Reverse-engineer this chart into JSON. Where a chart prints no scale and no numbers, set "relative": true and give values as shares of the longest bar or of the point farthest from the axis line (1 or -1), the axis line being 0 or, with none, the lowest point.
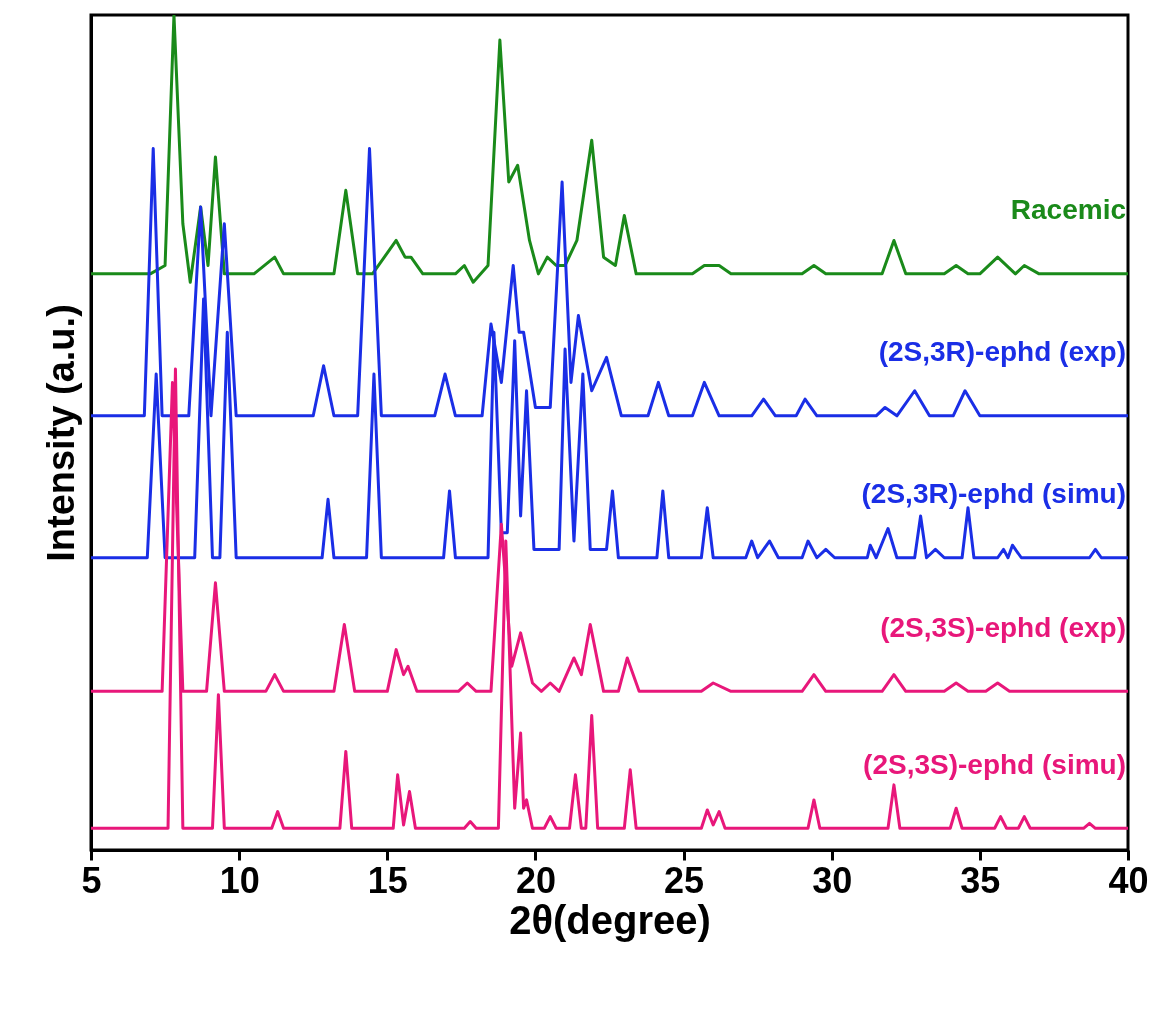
{
  "chart_data": {
    "type": "line",
    "relative": true,
    "xlabel": "2θ(degree)",
    "ylabel": "Intensity (a.u.)",
    "xlim": [
      5,
      40
    ],
    "xticks": [
      5,
      10,
      15,
      20,
      25,
      30,
      35,
      40
    ],
    "marker": "none",
    "line_style": "solid",
    "series": [
      {
        "name": "Racemic",
        "color": "#1a8a1a",
        "x": [
          5,
          7.0,
          7.5,
          7.8,
          8.1,
          8.35,
          8.7,
          8.95,
          9.2,
          9.5,
          10.5,
          11.2,
          11.5,
          13.2,
          13.6,
          14.0,
          14.5,
          15.3,
          15.6,
          15.8,
          16.2,
          17.3,
          17.6,
          17.9,
          18.4,
          18.8,
          19.1,
          19.4,
          19.8,
          20.1,
          20.4,
          20.7,
          21.0,
          21.4,
          21.9,
          22.3,
          22.7,
          23.0,
          23.4,
          25.3,
          25.7,
          26.0,
          26.2,
          26.6,
          29.0,
          29.4,
          29.8,
          31.7,
          32.1,
          32.5,
          33.8,
          34.2,
          34.6,
          35.0,
          35.6,
          36.2,
          36.5,
          37,
          40
        ],
        "values": [
          0.69,
          0.69,
          0.7,
          1.0,
          0.75,
          0.68,
          0.77,
          0.7,
          0.83,
          0.69,
          0.69,
          0.71,
          0.69,
          0.69,
          0.79,
          0.69,
          0.69,
          0.73,
          0.71,
          0.71,
          0.69,
          0.69,
          0.7,
          0.68,
          0.7,
          0.97,
          0.8,
          0.82,
          0.73,
          0.69,
          0.71,
          0.7,
          0.7,
          0.73,
          0.85,
          0.71,
          0.7,
          0.76,
          0.69,
          0.69,
          0.7,
          0.7,
          0.7,
          0.69,
          0.69,
          0.7,
          0.69,
          0.69,
          0.73,
          0.69,
          0.69,
          0.7,
          0.69,
          0.69,
          0.71,
          0.69,
          0.7,
          0.69,
          0.69
        ]
      },
      {
        "name": "(2S,3R)-ephd (exp)",
        "color": "#1a2ee6",
        "x": [
          5,
          6.8,
          7.1,
          7.4,
          8.3,
          8.7,
          9.05,
          9.5,
          9.9,
          12.5,
          12.85,
          13.2,
          14.0,
          14.4,
          14.8,
          16.6,
          16.95,
          17.3,
          18.2,
          18.5,
          18.85,
          19.25,
          19.45,
          19.6,
          20.0,
          20.5,
          20.9,
          21.2,
          21.45,
          21.9,
          22.4,
          22.9,
          23.8,
          24.15,
          24.5,
          25.3,
          25.7,
          26.2,
          27.3,
          27.7,
          28.1,
          28.8,
          29.1,
          29.5,
          31.5,
          31.8,
          32.2,
          32.8,
          33.3,
          34.1,
          34.5,
          35.0,
          40
        ],
        "values": [
          0.52,
          0.52,
          0.84,
          0.52,
          0.52,
          0.77,
          0.52,
          0.75,
          0.52,
          0.52,
          0.58,
          0.52,
          0.52,
          0.84,
          0.52,
          0.52,
          0.57,
          0.52,
          0.52,
          0.63,
          0.56,
          0.7,
          0.62,
          0.62,
          0.53,
          0.53,
          0.8,
          0.56,
          0.64,
          0.55,
          0.59,
          0.52,
          0.52,
          0.56,
          0.52,
          0.52,
          0.56,
          0.52,
          0.52,
          0.54,
          0.52,
          0.52,
          0.54,
          0.52,
          0.52,
          0.53,
          0.52,
          0.55,
          0.52,
          0.52,
          0.55,
          0.52,
          0.52
        ]
      },
      {
        "name": "(2S,3R)-ephd (simu)",
        "color": "#1a2ee6",
        "x": [
          5,
          6.9,
          7.2,
          7.5,
          8.5,
          8.8,
          9.1,
          9.35,
          9.6,
          9.9,
          12.8,
          13.0,
          13.2,
          14.3,
          14.55,
          14.8,
          16.9,
          17.1,
          17.3,
          18.4,
          18.6,
          18.85,
          19.05,
          19.3,
          19.5,
          19.7,
          19.95,
          20.8,
          21.0,
          21.3,
          21.6,
          21.85,
          22.4,
          22.6,
          22.8,
          24.1,
          24.3,
          24.5,
          25.6,
          25.8,
          26.0,
          27.1,
          27.3,
          27.5,
          27.9,
          28.2,
          29.0,
          29.2,
          29.5,
          29.8,
          30.1,
          31.2,
          31.3,
          31.5,
          31.9,
          32.2,
          32.8,
          33.0,
          33.2,
          33.5,
          33.8,
          34.4,
          34.6,
          34.8,
          35.6,
          35.8,
          35.95,
          36.1,
          36.4,
          38.7,
          38.9,
          39.1,
          40
        ],
        "values": [
          0.35,
          0.35,
          0.57,
          0.35,
          0.35,
          0.66,
          0.35,
          0.35,
          0.62,
          0.35,
          0.35,
          0.42,
          0.35,
          0.35,
          0.57,
          0.35,
          0.35,
          0.43,
          0.35,
          0.35,
          0.62,
          0.38,
          0.38,
          0.61,
          0.4,
          0.55,
          0.36,
          0.36,
          0.6,
          0.37,
          0.57,
          0.36,
          0.36,
          0.43,
          0.35,
          0.35,
          0.43,
          0.35,
          0.35,
          0.41,
          0.35,
          0.35,
          0.37,
          0.35,
          0.37,
          0.35,
          0.35,
          0.37,
          0.35,
          0.36,
          0.35,
          0.35,
          0.365,
          0.35,
          0.385,
          0.35,
          0.35,
          0.4,
          0.35,
          0.36,
          0.35,
          0.35,
          0.41,
          0.35,
          0.35,
          0.36,
          0.35,
          0.365,
          0.35,
          0.35,
          0.36,
          0.35,
          0.35
        ]
      },
      {
        "name": "(2S,3S)-ephd (exp)",
        "color": "#e8177a",
        "x": [
          5,
          7.4,
          7.75,
          8.1,
          8.9,
          9.2,
          9.5,
          10.9,
          11.2,
          11.5,
          13.2,
          13.55,
          13.9,
          15.0,
          15.3,
          15.55,
          15.7,
          16.0,
          17.4,
          17.7,
          18.0,
          18.5,
          18.85,
          19.2,
          19.5,
          19.9,
          20.2,
          20.5,
          20.8,
          21.3,
          21.55,
          21.85,
          22.3,
          22.8,
          23.1,
          23.5,
          25.6,
          26.0,
          26.6,
          29.0,
          29.4,
          29.8,
          31.7,
          32.1,
          32.5,
          33.8,
          34.2,
          34.6,
          35.2,
          35.6,
          36.0,
          40
        ],
        "values": [
          0.19,
          0.19,
          0.56,
          0.19,
          0.19,
          0.32,
          0.19,
          0.19,
          0.21,
          0.19,
          0.19,
          0.27,
          0.19,
          0.19,
          0.24,
          0.21,
          0.22,
          0.19,
          0.19,
          0.2,
          0.19,
          0.19,
          0.39,
          0.22,
          0.26,
          0.2,
          0.19,
          0.2,
          0.19,
          0.23,
          0.21,
          0.27,
          0.19,
          0.19,
          0.23,
          0.19,
          0.19,
          0.2,
          0.19,
          0.19,
          0.21,
          0.19,
          0.19,
          0.21,
          0.19,
          0.19,
          0.2,
          0.19,
          0.19,
          0.2,
          0.19,
          0.19
        ]
      },
      {
        "name": "(2S,3S)-ephd (simu)",
        "color": "#e8177a",
        "x": [
          5,
          7.6,
          7.85,
          8.1,
          9.1,
          9.3,
          9.5,
          11.1,
          11.3,
          11.5,
          13.4,
          13.6,
          13.8,
          15.2,
          15.35,
          15.55,
          15.75,
          15.95,
          17.6,
          17.8,
          18.0,
          18.75,
          19.0,
          19.3,
          19.5,
          19.6,
          19.7,
          19.9,
          20.3,
          20.5,
          20.7,
          21.15,
          21.35,
          21.55,
          21.7,
          21.9,
          22.1,
          23.0,
          23.2,
          23.4,
          25.6,
          25.8,
          26.0,
          26.2,
          26.4,
          29.2,
          29.4,
          29.6,
          31.9,
          32.1,
          32.3,
          34.0,
          34.2,
          34.4,
          35.5,
          35.7,
          35.9,
          36.3,
          36.5,
          36.7,
          38.5,
          38.7,
          38.9,
          40
        ],
        "values": [
          0.026,
          0.026,
          0.576,
          0.026,
          0.026,
          0.186,
          0.026,
          0.026,
          0.046,
          0.026,
          0.026,
          0.118,
          0.026,
          0.026,
          0.09,
          0.03,
          0.07,
          0.026,
          0.026,
          0.034,
          0.026,
          0.026,
          0.37,
          0.05,
          0.14,
          0.05,
          0.06,
          0.026,
          0.026,
          0.04,
          0.026,
          0.026,
          0.09,
          0.026,
          0.026,
          0.161,
          0.026,
          0.026,
          0.096,
          0.026,
          0.026,
          0.048,
          0.03,
          0.046,
          0.026,
          0.026,
          0.06,
          0.026,
          0.026,
          0.078,
          0.026,
          0.026,
          0.05,
          0.026,
          0.026,
          0.04,
          0.026,
          0.026,
          0.04,
          0.026,
          0.026,
          0.032,
          0.026,
          0.026
        ]
      }
    ]
  }
}
